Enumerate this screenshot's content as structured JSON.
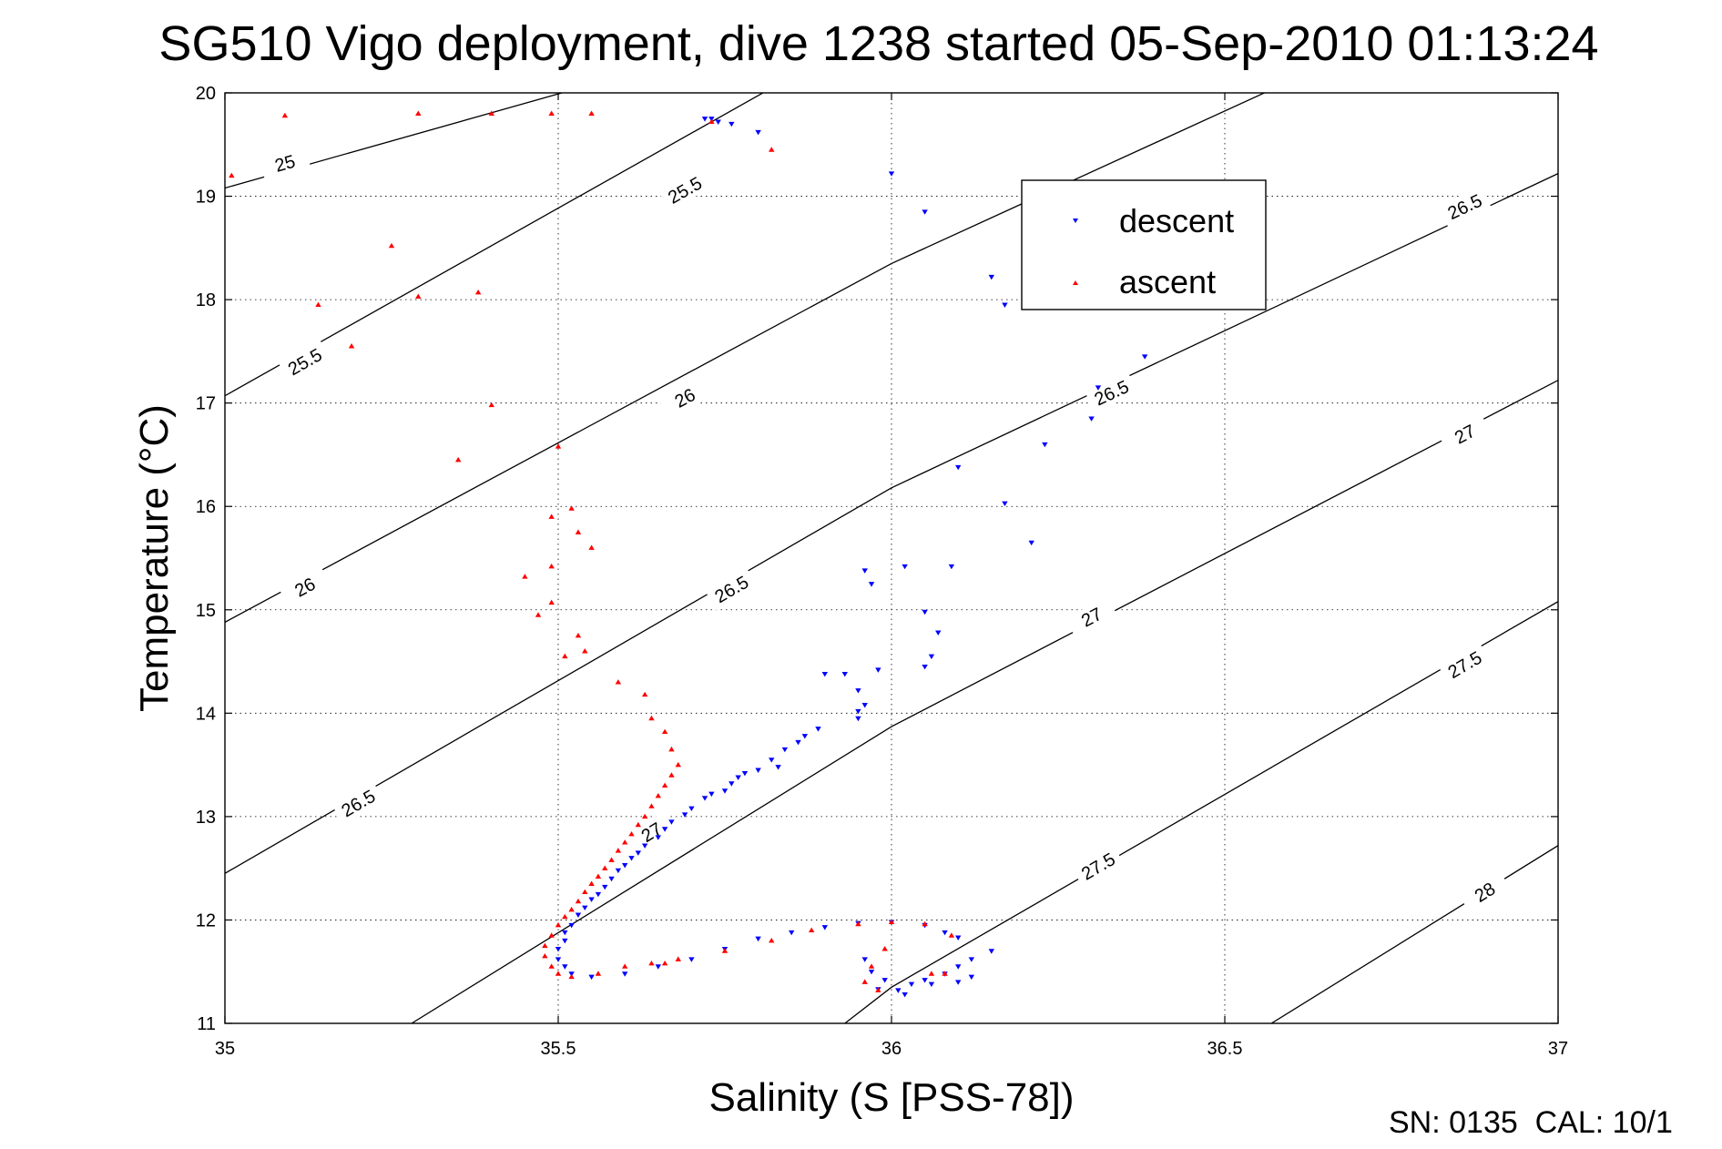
{
  "chart_data": {
    "type": "scatter",
    "title": "SG510 Vigo deployment, dive 1238 started 05-Sep-2010 01:13:24",
    "xlabel": "Salinity (S [PSS-78])",
    "ylabel": "Temperature (°C)",
    "xlim": [
      35,
      37
    ],
    "ylim": [
      11,
      20
    ],
    "xticks": [
      35,
      35.5,
      36,
      36.5,
      37
    ],
    "xtick_labels": [
      "35",
      "35.5",
      "36",
      "36.5",
      "37"
    ],
    "yticks": [
      11,
      12,
      13,
      14,
      15,
      16,
      17,
      18,
      19,
      20
    ],
    "ytick_labels": [
      "11",
      "12",
      "13",
      "14",
      "15",
      "16",
      "17",
      "18",
      "19",
      "20"
    ],
    "grid": true,
    "legend_position": "top-right",
    "footer": "SN: 0135  CAL: 10/1",
    "colors": {
      "descent": "#0000ff",
      "ascent": "#ff0000",
      "contour": "#000000"
    },
    "contours": [
      {
        "level": "25",
        "line": [
          [
            35.0,
            19.08
          ],
          [
            36.0,
            20.9
          ]
        ],
        "labels": [
          [
            35.09,
            19.32
          ]
        ]
      },
      {
        "level": "25.5",
        "line": [
          [
            35.0,
            17.07
          ],
          [
            36.0,
            20.7
          ]
        ],
        "labels": [
          [
            35.12,
            17.4
          ],
          [
            35.69,
            19.06
          ]
        ]
      },
      {
        "level": "26",
        "line": [
          [
            35.0,
            14.88
          ],
          [
            36.0,
            18.35
          ],
          [
            37.0,
            21.3
          ]
        ],
        "labels": [
          [
            35.12,
            15.22
          ],
          [
            35.69,
            17.05
          ]
        ]
      },
      {
        "level": "26.5",
        "line": [
          [
            35.0,
            12.45
          ],
          [
            36.0,
            16.18
          ],
          [
            37.0,
            19.22
          ]
        ],
        "labels": [
          [
            35.2,
            13.13
          ],
          [
            35.76,
            15.2
          ],
          [
            36.33,
            17.1
          ],
          [
            36.86,
            18.9
          ]
        ]
      },
      {
        "level": "27",
        "line": [
          [
            35.28,
            11.0
          ],
          [
            36.0,
            13.87
          ],
          [
            37.0,
            17.22
          ]
        ],
        "labels": [
          [
            35.64,
            12.85
          ],
          [
            36.3,
            14.93
          ],
          [
            36.86,
            16.7
          ]
        ]
      },
      {
        "level": "27.5",
        "line": [
          [
            35.93,
            11.0
          ],
          [
            36.0,
            11.35
          ],
          [
            37.0,
            15.08
          ]
        ],
        "labels": [
          [
            36.31,
            12.52
          ],
          [
            36.86,
            14.47
          ]
        ]
      },
      {
        "level": "28",
        "line": [
          [
            36.57,
            11.0
          ],
          [
            37.0,
            12.72
          ]
        ],
        "labels": [
          [
            36.89,
            12.27
          ]
        ]
      }
    ],
    "series": [
      {
        "name": "descent",
        "marker": "triangle-down",
        "points": [
          [
            35.72,
            19.75
          ],
          [
            35.73,
            19.75
          ],
          [
            35.74,
            19.72
          ],
          [
            35.76,
            19.7
          ],
          [
            35.8,
            19.62
          ],
          [
            36.0,
            19.22
          ],
          [
            36.05,
            18.85
          ],
          [
            36.15,
            18.22
          ],
          [
            36.17,
            17.95
          ],
          [
            36.38,
            17.45
          ],
          [
            36.31,
            17.15
          ],
          [
            36.3,
            16.85
          ],
          [
            36.23,
            16.6
          ],
          [
            36.1,
            16.38
          ],
          [
            36.17,
            16.03
          ],
          [
            36.21,
            15.65
          ],
          [
            36.09,
            15.42
          ],
          [
            36.02,
            15.42
          ],
          [
            35.96,
            15.38
          ],
          [
            35.97,
            15.25
          ],
          [
            36.05,
            14.98
          ],
          [
            36.07,
            14.78
          ],
          [
            36.06,
            14.55
          ],
          [
            36.05,
            14.45
          ],
          [
            35.98,
            14.42
          ],
          [
            35.9,
            14.38
          ],
          [
            35.93,
            14.38
          ],
          [
            35.95,
            14.22
          ],
          [
            35.96,
            14.08
          ],
          [
            35.95,
            14.02
          ],
          [
            35.95,
            13.95
          ],
          [
            35.89,
            13.85
          ],
          [
            35.87,
            13.78
          ],
          [
            35.86,
            13.72
          ],
          [
            35.84,
            13.65
          ],
          [
            35.82,
            13.55
          ],
          [
            35.83,
            13.48
          ],
          [
            35.8,
            13.45
          ],
          [
            35.78,
            13.42
          ],
          [
            35.77,
            13.38
          ],
          [
            35.76,
            13.32
          ],
          [
            35.75,
            13.25
          ],
          [
            35.73,
            13.22
          ],
          [
            35.72,
            13.18
          ],
          [
            35.7,
            13.08
          ],
          [
            35.69,
            13.02
          ],
          [
            35.67,
            12.95
          ],
          [
            35.66,
            12.88
          ],
          [
            35.65,
            12.8
          ],
          [
            35.63,
            12.72
          ],
          [
            35.62,
            12.65
          ],
          [
            35.61,
            12.6
          ],
          [
            35.6,
            12.53
          ],
          [
            35.59,
            12.48
          ],
          [
            35.58,
            12.4
          ],
          [
            35.57,
            12.32
          ],
          [
            35.56,
            12.25
          ],
          [
            35.55,
            12.2
          ],
          [
            35.54,
            12.12
          ],
          [
            35.53,
            12.05
          ],
          [
            35.52,
            11.95
          ],
          [
            35.51,
            11.88
          ],
          [
            35.51,
            11.8
          ],
          [
            35.5,
            11.72
          ],
          [
            35.5,
            11.62
          ],
          [
            35.51,
            11.55
          ],
          [
            35.52,
            11.48
          ],
          [
            35.55,
            11.45
          ],
          [
            35.6,
            11.48
          ],
          [
            35.65,
            11.55
          ],
          [
            35.7,
            11.62
          ],
          [
            35.75,
            11.72
          ],
          [
            35.8,
            11.82
          ],
          [
            35.85,
            11.88
          ],
          [
            35.9,
            11.93
          ],
          [
            35.95,
            11.97
          ],
          [
            36.0,
            11.98
          ],
          [
            36.05,
            11.95
          ],
          [
            36.08,
            11.88
          ],
          [
            36.1,
            11.83
          ],
          [
            36.15,
            11.7
          ],
          [
            36.12,
            11.62
          ],
          [
            36.1,
            11.55
          ],
          [
            36.08,
            11.48
          ],
          [
            36.05,
            11.42
          ],
          [
            36.03,
            11.38
          ],
          [
            36.01,
            11.32
          ],
          [
            35.98,
            11.33
          ],
          [
            36.06,
            11.38
          ],
          [
            35.97,
            11.5
          ],
          [
            35.96,
            11.62
          ],
          [
            35.99,
            11.42
          ],
          [
            36.02,
            11.28
          ],
          [
            36.12,
            11.45
          ],
          [
            36.1,
            11.4
          ]
        ]
      },
      {
        "name": "ascent",
        "marker": "triangle-up",
        "points": [
          [
            35.01,
            19.2
          ],
          [
            35.09,
            19.78
          ],
          [
            35.29,
            19.8
          ],
          [
            35.4,
            19.8
          ],
          [
            35.49,
            19.8
          ],
          [
            35.55,
            19.8
          ],
          [
            35.73,
            19.72
          ],
          [
            35.82,
            19.45
          ],
          [
            35.25,
            18.52
          ],
          [
            35.29,
            18.03
          ],
          [
            35.38,
            18.07
          ],
          [
            35.14,
            17.95
          ],
          [
            35.19,
            17.55
          ],
          [
            35.4,
            16.98
          ],
          [
            35.35,
            16.45
          ],
          [
            35.5,
            16.58
          ],
          [
            35.49,
            15.9
          ],
          [
            35.52,
            15.98
          ],
          [
            35.53,
            15.75
          ],
          [
            35.55,
            15.6
          ],
          [
            35.45,
            15.32
          ],
          [
            35.49,
            15.42
          ],
          [
            35.49,
            15.07
          ],
          [
            35.47,
            14.95
          ],
          [
            35.53,
            14.75
          ],
          [
            35.54,
            14.6
          ],
          [
            35.51,
            14.55
          ],
          [
            35.59,
            14.3
          ],
          [
            35.63,
            14.18
          ],
          [
            35.64,
            13.95
          ],
          [
            35.66,
            13.82
          ],
          [
            35.67,
            13.65
          ],
          [
            35.68,
            13.5
          ],
          [
            35.67,
            13.4
          ],
          [
            35.66,
            13.3
          ],
          [
            35.65,
            13.2
          ],
          [
            35.64,
            13.1
          ],
          [
            35.63,
            13.0
          ],
          [
            35.62,
            12.92
          ],
          [
            35.61,
            12.83
          ],
          [
            35.6,
            12.75
          ],
          [
            35.59,
            12.67
          ],
          [
            35.58,
            12.58
          ],
          [
            35.57,
            12.5
          ],
          [
            35.56,
            12.42
          ],
          [
            35.55,
            12.35
          ],
          [
            35.54,
            12.27
          ],
          [
            35.53,
            12.18
          ],
          [
            35.52,
            12.1
          ],
          [
            35.51,
            12.03
          ],
          [
            35.5,
            11.95
          ],
          [
            35.49,
            11.85
          ],
          [
            35.48,
            11.75
          ],
          [
            35.48,
            11.65
          ],
          [
            35.49,
            11.55
          ],
          [
            35.5,
            11.48
          ],
          [
            35.52,
            11.45
          ],
          [
            35.56,
            11.48
          ],
          [
            35.6,
            11.55
          ],
          [
            35.64,
            11.58
          ],
          [
            35.68,
            11.62
          ],
          [
            35.75,
            11.7
          ],
          [
            35.82,
            11.8
          ],
          [
            35.88,
            11.9
          ],
          [
            35.95,
            11.96
          ],
          [
            36.0,
            11.98
          ],
          [
            36.05,
            11.96
          ],
          [
            36.09,
            11.85
          ],
          [
            35.97,
            11.55
          ],
          [
            35.96,
            11.4
          ],
          [
            35.98,
            11.32
          ],
          [
            36.06,
            11.48
          ],
          [
            36.08,
            11.48
          ],
          [
            35.99,
            11.72
          ],
          [
            35.66,
            11.58
          ]
        ]
      }
    ]
  }
}
